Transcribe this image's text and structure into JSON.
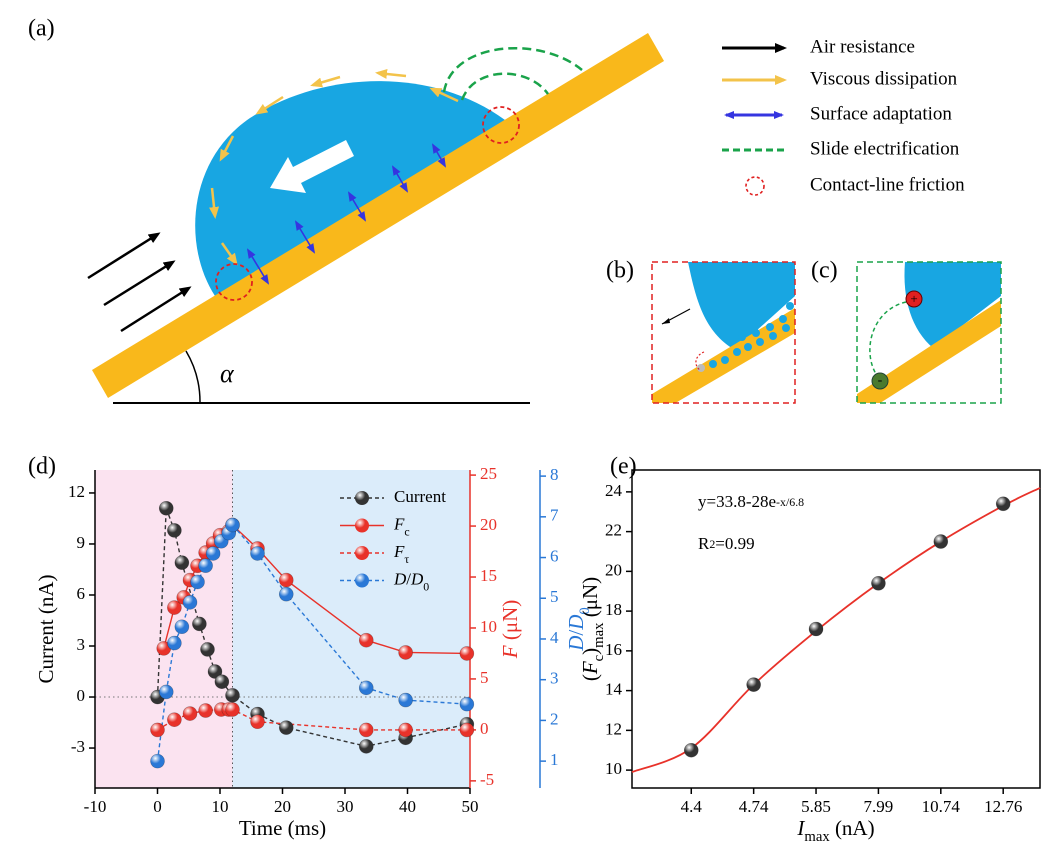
{
  "figure": {
    "panel_labels": {
      "a": "(a)",
      "b": "(b)",
      "c": "(c)"
    },
    "legend": [
      "Air resistance",
      "Viscous dissipation",
      "Surface adaptation",
      "Slide electrification",
      "Contact-line friction"
    ],
    "angle": "α",
    "charge_plus": "+",
    "charge_minus": "-"
  },
  "chart_data": [
    {
      "type": "line",
      "label": "(d)",
      "xlabel": "Time (ms)",
      "ylabel": "Current (nA)",
      "y2label": "F (μN)",
      "y3label": "D/D0",
      "xlim": [
        -10,
        50
      ],
      "xticks": [
        -10,
        0,
        10,
        20,
        30,
        40,
        50
      ],
      "ylim": [
        -5.35,
        13.35
      ],
      "yticks": [
        -3,
        0,
        3,
        6,
        9,
        12
      ],
      "y2lim": [
        -5.7,
        25.5
      ],
      "y2ticks": [
        -5,
        0,
        5,
        10,
        15,
        20,
        25
      ],
      "y2color": "#e8322a",
      "y3lim": [
        0.34,
        8.15
      ],
      "y3ticks": [
        1,
        2,
        3,
        4,
        5,
        6,
        7,
        8
      ],
      "y3color": "#2a78d6",
      "regions": [
        {
          "from": -10,
          "to": 12,
          "color": "#fbe3f0"
        },
        {
          "from": 12,
          "to": 50,
          "color": "#dbecfa"
        }
      ],
      "zero_line": true,
      "legend": "upper right",
      "series": [
        {
          "name": "Current",
          "color": "#333333",
          "axis": "y",
          "line_style": "dashed",
          "x": [
            0,
            1.4,
            2.7,
            3.9,
            6.7,
            8,
            9.2,
            10.3,
            12,
            16,
            20.6,
            33.4,
            39.7,
            49.5
          ],
          "values": [
            0,
            11.1,
            9.8,
            7.9,
            4.3,
            2.8,
            1.5,
            0.9,
            0.1,
            -1.0,
            -1.8,
            -2.9,
            -2.4,
            -1.6
          ]
        },
        {
          "name": "Fc",
          "color": "#e8322a",
          "axis": "y2",
          "line_style": "solid",
          "x": [
            1.0,
            2.7,
            4.2,
            5.2,
            6.4,
            7.7,
            8.9,
            10.0,
            11.4,
            12,
            16,
            20.6,
            33.4,
            39.7,
            49.5
          ],
          "values": [
            8.0,
            12.0,
            13.0,
            14.7,
            16.1,
            17.4,
            18.3,
            19.1,
            19.5,
            20.1,
            17.8,
            14.7,
            8.8,
            7.6,
            7.5
          ]
        },
        {
          "name": "Fτ",
          "color": "#e8322a",
          "axis": "y2",
          "line_style": "dashed",
          "x": [
            0,
            2.7,
            5.2,
            7.7,
            10.2,
            11.4,
            12,
            16,
            33.4,
            39.7,
            49.5
          ],
          "values": [
            0,
            1.0,
            1.6,
            1.9,
            2.0,
            2.0,
            2.0,
            0.8,
            0,
            0,
            0
          ]
        },
        {
          "name": "D/D0",
          "color": "#2a78d6",
          "axis": "y3",
          "line_style": "dashed",
          "x": [
            0,
            1.4,
            2.7,
            3.9,
            5.2,
            6.4,
            7.7,
            8.9,
            10.2,
            11.4,
            12,
            16,
            20.6,
            33.4,
            39.7,
            49.5
          ],
          "values": [
            1,
            2.7,
            3.9,
            4.3,
            4.9,
            5.4,
            5.8,
            6.1,
            6.4,
            6.6,
            6.8,
            6.1,
            5.1,
            2.8,
            2.5,
            2.4
          ]
        }
      ]
    },
    {
      "type": "scatter",
      "label": "(e)",
      "xlabel": "Imax (nA)",
      "ylabel": "(Fc)max (μN)",
      "xlim": [
        -0.95,
        5.59
      ],
      "xticks": [
        {
          "value": 0,
          "label": "4.4"
        },
        {
          "value": 1,
          "label": "4.74"
        },
        {
          "value": 2,
          "label": "5.85"
        },
        {
          "value": 3,
          "label": "7.99"
        },
        {
          "value": 4,
          "label": "10.74"
        },
        {
          "value": 5,
          "label": "12.76"
        }
      ],
      "ylim": [
        9.1,
        25.1
      ],
      "yticks": [
        10,
        12,
        14,
        16,
        18,
        20,
        22,
        24
      ],
      "x": [
        0,
        1,
        2,
        3,
        4,
        5
      ],
      "values": [
        11.0,
        14.3,
        17.1,
        19.4,
        21.5,
        23.4
      ],
      "color": "#333333",
      "fit": {
        "color": "#e8322a",
        "x": [
          -0.95,
          0,
          1,
          2,
          3,
          4,
          5,
          5.59
        ],
        "values": [
          9.9,
          11.1,
          14.3,
          17.0,
          19.4,
          21.5,
          23.3,
          24.2
        ]
      },
      "annotations": [
        "y=33.8-28e-x/6.8",
        "R2=0.99"
      ]
    }
  ]
}
